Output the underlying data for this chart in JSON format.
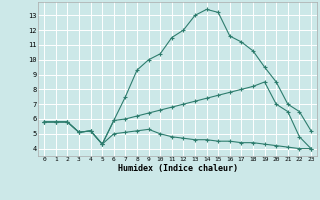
{
  "xlabel": "Humidex (Indice chaleur)",
  "xlim": [
    -0.5,
    23.5
  ],
  "ylim": [
    3.5,
    13.9
  ],
  "xticks": [
    0,
    1,
    2,
    3,
    4,
    5,
    6,
    7,
    8,
    9,
    10,
    11,
    12,
    13,
    14,
    15,
    16,
    17,
    18,
    19,
    20,
    21,
    22,
    23
  ],
  "yticks": [
    4,
    5,
    6,
    7,
    8,
    9,
    10,
    11,
    12,
    13
  ],
  "bg_color": "#cce8e8",
  "grid_color": "#ffffff",
  "line_color": "#2e7d6e",
  "line1_x": [
    0,
    1,
    2,
    3,
    4,
    5,
    6,
    7,
    8,
    9,
    10,
    11,
    12,
    13,
    14,
    15,
    16,
    17,
    18,
    19,
    20,
    21,
    22,
    23
  ],
  "line1_y": [
    5.8,
    5.8,
    5.8,
    5.1,
    5.2,
    4.3,
    5.9,
    7.5,
    9.3,
    10.0,
    10.4,
    11.5,
    12.0,
    13.0,
    13.4,
    13.2,
    11.6,
    11.2,
    10.6,
    9.5,
    8.5,
    7.0,
    6.5,
    5.2
  ],
  "line2_x": [
    0,
    1,
    2,
    3,
    4,
    5,
    6,
    7,
    8,
    9,
    10,
    11,
    12,
    13,
    14,
    15,
    16,
    17,
    18,
    19,
    20,
    21,
    22,
    23
  ],
  "line2_y": [
    5.8,
    5.8,
    5.8,
    5.1,
    5.2,
    4.3,
    5.9,
    6.0,
    6.2,
    6.4,
    6.6,
    6.8,
    7.0,
    7.2,
    7.4,
    7.6,
    7.8,
    8.0,
    8.2,
    8.5,
    7.0,
    6.5,
    4.8,
    4.0
  ],
  "line3_x": [
    0,
    1,
    2,
    3,
    4,
    5,
    6,
    7,
    8,
    9,
    10,
    11,
    12,
    13,
    14,
    15,
    16,
    17,
    18,
    19,
    20,
    21,
    22,
    23
  ],
  "line3_y": [
    5.8,
    5.8,
    5.8,
    5.1,
    5.2,
    4.3,
    5.0,
    5.1,
    5.2,
    5.3,
    5.0,
    4.8,
    4.7,
    4.6,
    4.6,
    4.5,
    4.5,
    4.4,
    4.4,
    4.3,
    4.2,
    4.1,
    4.0,
    4.0
  ]
}
